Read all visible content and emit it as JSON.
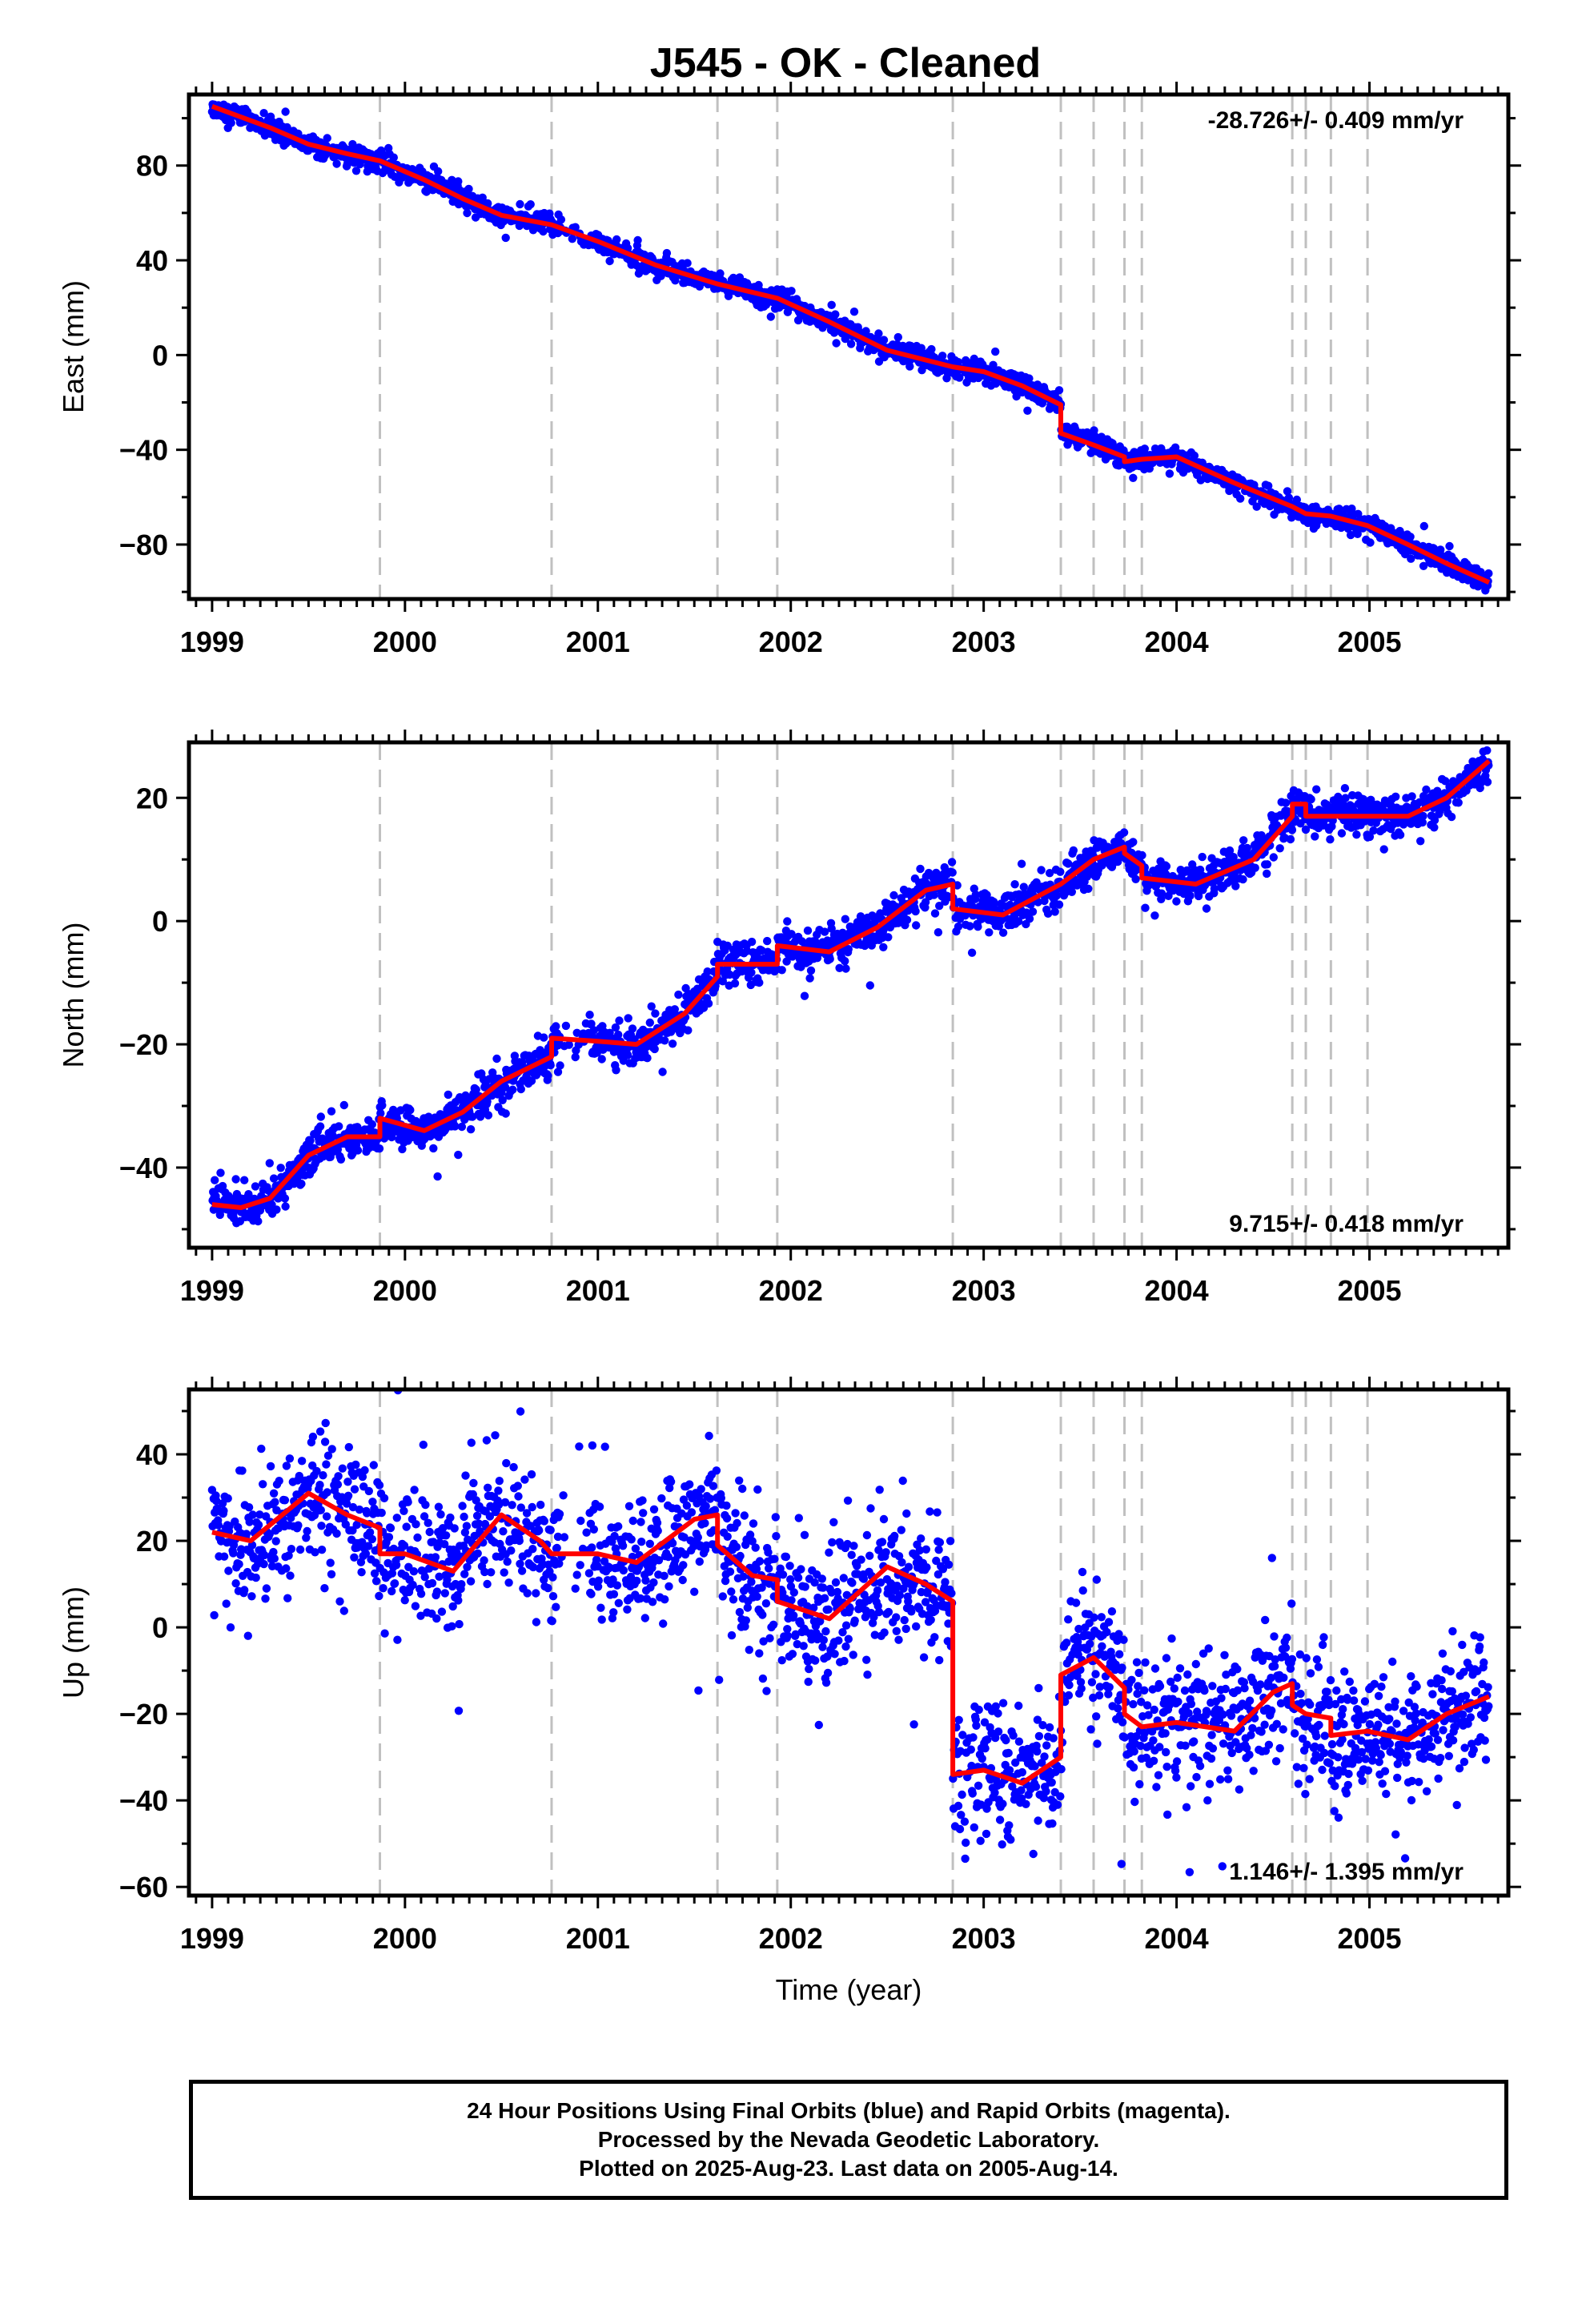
{
  "title": "J545  - OK - Cleaned",
  "footer": {
    "line1": "24 Hour Positions Using Final Orbits (blue) and Rapid Orbits (magenta).",
    "line2": "Processed by the Nevada Geodetic Laboratory.",
    "line3": "Plotted on 2025-Aug-23. Last data on 2005-Aug-14."
  },
  "colors": {
    "final_orbits": "#0000ff",
    "model": "#ff0000",
    "events": "#c0c0c0",
    "frame": "#000000"
  },
  "chart_data": [
    {
      "type": "scatter",
      "component": "east",
      "title": "J545  - OK - Cleaned",
      "ylabel": "East (mm)",
      "xlabel": "",
      "xlim": [
        1998.88,
        2005.72
      ],
      "ylim": [
        -103,
        110
      ],
      "xticks": [
        1999,
        2000,
        2001,
        2002,
        2003,
        2004,
        2005
      ],
      "yticks": [
        -80,
        -40,
        0,
        40,
        80
      ],
      "rate_label": "-28.726+/- 0.409 mm/yr",
      "rate_position": "top-right",
      "event_lines": [
        1999.87,
        2000.76,
        2001.62,
        2001.93,
        2002.84,
        2003.4,
        2003.57,
        2003.73,
        2003.82,
        2004.6,
        2004.67,
        2004.8,
        2004.99
      ],
      "model": {
        "x": [
          1999.0,
          1999.3,
          1999.5,
          1999.7,
          1999.87,
          1999.87,
          2000.1,
          2000.3,
          2000.5,
          2000.76,
          2000.76,
          2001.0,
          2001.3,
          2001.62,
          2001.62,
          2001.93,
          2001.93,
          2002.2,
          2002.5,
          2002.84,
          2002.84,
          2003.0,
          2003.2,
          2003.4,
          2003.4,
          2003.57,
          2003.57,
          2003.73,
          2003.73,
          2003.82,
          2003.82,
          2004.0,
          2004.3,
          2004.6,
          2004.6,
          2004.67,
          2004.67,
          2004.8,
          2004.8,
          2004.99,
          2004.99,
          2005.2,
          2005.4,
          2005.62
        ],
        "y": [
          105,
          96,
          89,
          85,
          82,
          82,
          74,
          66,
          59,
          55,
          55,
          48,
          38,
          30,
          30,
          24,
          24,
          14,
          2,
          -5,
          -5,
          -7,
          -13,
          -21,
          -33,
          -38,
          -38,
          -43,
          -45,
          -44,
          -44,
          -43,
          -54,
          -64,
          -64,
          -67,
          -67,
          -68,
          -68,
          -72,
          -72,
          -80,
          -88,
          -96
        ]
      },
      "noise_mm": 2.2
    },
    {
      "type": "scatter",
      "component": "north",
      "ylabel": "North (mm)",
      "xlabel": "",
      "xlim": [
        1998.88,
        2005.72
      ],
      "ylim": [
        -53,
        29
      ],
      "xticks": [
        1999,
        2000,
        2001,
        2002,
        2003,
        2004,
        2005
      ],
      "yticks": [
        -40,
        -20,
        0,
        20
      ],
      "rate_label": "9.715+/- 0.418 mm/yr",
      "rate_position": "bottom-right",
      "event_lines": [
        1999.87,
        2000.76,
        2001.62,
        2001.93,
        2002.84,
        2003.4,
        2003.57,
        2003.73,
        2003.82,
        2004.6,
        2004.67,
        2004.8,
        2004.99
      ],
      "model": {
        "x": [
          1999.0,
          1999.15,
          1999.3,
          1999.5,
          1999.7,
          1999.87,
          1999.87,
          2000.1,
          2000.3,
          2000.5,
          2000.76,
          2000.76,
          2001.0,
          2001.2,
          2001.45,
          2001.62,
          2001.62,
          2001.93,
          2001.93,
          2002.2,
          2002.45,
          2002.7,
          2002.84,
          2002.84,
          2003.1,
          2003.4,
          2003.57,
          2003.73,
          2003.73,
          2003.82,
          2003.82,
          2004.1,
          2004.4,
          2004.6,
          2004.6,
          2004.67,
          2004.67,
          2004.8,
          2004.99,
          2004.99,
          2005.2,
          2005.4,
          2005.62
        ],
        "y": [
          -46,
          -46.5,
          -45,
          -38,
          -35,
          -35,
          -32,
          -34,
          -31,
          -26,
          -22,
          -19,
          -19.5,
          -20,
          -15,
          -9,
          -7,
          -7,
          -4,
          -5,
          -1,
          5,
          6,
          2,
          1,
          6,
          10,
          12,
          11,
          9,
          7,
          6,
          10,
          17,
          19,
          19,
          17,
          17,
          17,
          17,
          17,
          20,
          26
        ]
      },
      "noise_mm": 1.6
    },
    {
      "type": "scatter",
      "component": "up",
      "ylabel": "Up (mm)",
      "xlabel": "Time (year)",
      "xlim": [
        1998.88,
        2005.72
      ],
      "ylim": [
        -62,
        55
      ],
      "xticks": [
        1999,
        2000,
        2001,
        2002,
        2003,
        2004,
        2005
      ],
      "yticks": [
        -60,
        -40,
        -20,
        0,
        20,
        40
      ],
      "rate_label": "1.146+/- 1.395 mm/yr",
      "rate_position": "bottom-right",
      "event_lines": [
        1999.87,
        2000.76,
        2001.62,
        2001.93,
        2002.84,
        2003.4,
        2003.57,
        2003.73,
        2003.82,
        2004.6,
        2004.67,
        2004.8,
        2004.99
      ],
      "model": {
        "x": [
          1999.0,
          1999.2,
          1999.5,
          1999.7,
          1999.87,
          1999.87,
          2000.0,
          2000.25,
          2000.5,
          2000.7,
          2000.76,
          2000.76,
          2001.0,
          2001.2,
          2001.5,
          2001.62,
          2001.62,
          2001.8,
          2001.93,
          2001.93,
          2002.2,
          2002.5,
          2002.7,
          2002.84,
          2002.84,
          2003.0,
          2003.2,
          2003.4,
          2003.4,
          2003.57,
          2003.57,
          2003.73,
          2003.73,
          2003.82,
          2003.82,
          2004.0,
          2004.3,
          2004.5,
          2004.6,
          2004.6,
          2004.67,
          2004.67,
          2004.8,
          2004.8,
          2004.99,
          2004.99,
          2005.2,
          2005.4,
          2005.62
        ],
        "y": [
          22,
          20,
          31,
          26,
          23,
          17,
          17,
          13,
          26,
          20,
          17,
          17,
          17,
          15,
          25,
          26,
          19,
          12,
          11,
          6,
          2,
          14,
          10,
          6,
          -34,
          -33,
          -36,
          -30,
          -11,
          -7,
          -7,
          -14,
          -20,
          -23,
          -23,
          -22,
          -24,
          -15,
          -13,
          -18,
          -20,
          -20,
          -21,
          -25,
          -24,
          -24,
          -26,
          -20,
          -16
        ]
      },
      "noise_mm": 7.5
    }
  ]
}
